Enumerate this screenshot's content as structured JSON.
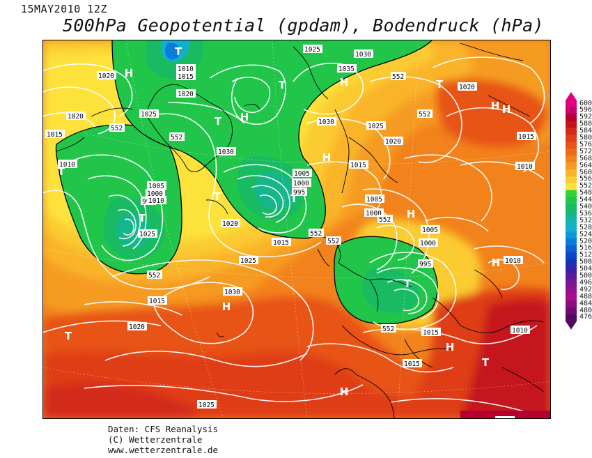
{
  "header": {
    "datestamp": "15MAY2010 12Z",
    "title": "500hPa Geopotential (gpdam), Bodendruck (hPa)"
  },
  "credits": {
    "line1": "Daten: CFS Reanalysis",
    "line2": "(C) Wetterzentrale",
    "line3": "www.wetterzentrale.de"
  },
  "legend": {
    "levels": [
      600,
      596,
      592,
      588,
      584,
      580,
      576,
      572,
      568,
      564,
      560,
      556,
      552,
      548,
      544,
      540,
      536,
      532,
      528,
      524,
      520,
      516,
      512,
      508,
      504,
      500,
      496,
      492,
      488,
      484,
      480,
      476
    ],
    "colors": [
      "#e0007e",
      "#c6006f",
      "#b8002e",
      "#c4151d",
      "#d4291a",
      "#df3e18",
      "#e85316",
      "#ee6a18",
      "#f2821c",
      "#f69b22",
      "#f9b42b",
      "#fbcb33",
      "#fde23b",
      "#34d23a",
      "#21c54a",
      "#18bb62",
      "#15b68a",
      "#13b5ad",
      "#11b0cf",
      "#0e98dc",
      "#0b7ad9",
      "#0a5fd3",
      "#0b44c8",
      "#1632b8",
      "#3423a8",
      "#5b1b9c",
      "#7a1594",
      "#941090",
      "#a80e8c",
      "#8c0b7e",
      "#6f0a73",
      "#55085f"
    ]
  },
  "map": {
    "isobar_labels": [
      "1025",
      "1030",
      "1010",
      "1015",
      "1020",
      "1035",
      "552",
      "1020",
      "1025",
      "1030",
      "1020",
      "1015",
      "1020",
      "1025",
      "1015",
      "1020",
      "1010",
      "1030",
      "1010",
      "1005",
      "1000",
      "995",
      "990",
      "1025",
      "1010",
      "1005",
      "1000",
      "1020",
      "1005",
      "1000",
      "1015",
      "1005",
      "1000",
      "995",
      "1015",
      "1025",
      "1030",
      "1015",
      "1020",
      "1010",
      "1015",
      "1025",
      "1010",
      "1010",
      "1015",
      "552",
      "552",
      "552",
      "552",
      "552",
      "552",
      "552",
      "552"
    ],
    "pressure_centers": [
      "T",
      "H",
      "H",
      "T",
      "T",
      "H",
      "T",
      "H",
      "H",
      "T",
      "T",
      "T",
      "H",
      "H",
      "H",
      "T",
      "H",
      "T",
      "T",
      "H",
      "H",
      "T"
    ]
  }
}
